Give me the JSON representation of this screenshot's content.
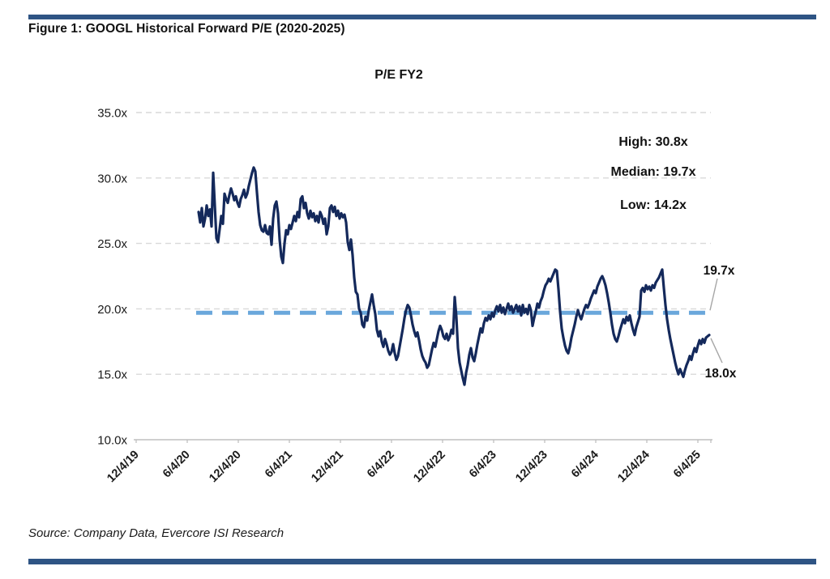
{
  "page": {
    "background": "#FFFFFF",
    "accent_bar_color": "#2E5484"
  },
  "header": {
    "title": "Figure 1: GOOGL Historical Forward P/E (2020-2025)"
  },
  "footer": {
    "source": "Source: Company Data, Evercore ISI Research"
  },
  "chart_data": {
    "type": "line",
    "title": "P/E FY2",
    "series_name": "GOOGL forward P/E (FY2)",
    "line_color": "#14295B",
    "grid_color": "#D9D9D9",
    "axis_color": "#BFBFBF",
    "callout_line_color": "#A6A6A6",
    "tick_text_color": "#1A1A1A",
    "grid_on": true,
    "legend_position": "none",
    "ylim": [
      10,
      35
    ],
    "y_tick_values": [
      35,
      30,
      25,
      20,
      15,
      10
    ],
    "y_tick_labels": [
      "35.0x",
      "30.0x",
      "25.0x",
      "20.0x",
      "15.0x",
      "10.0x"
    ],
    "x_tick_labels": [
      "12/4/19",
      "6/4/20",
      "12/4/20",
      "6/4/21",
      "12/4/21",
      "6/4/22",
      "12/4/22",
      "6/4/23",
      "12/4/23",
      "6/4/24",
      "12/4/24",
      "6/4/25"
    ],
    "x_tick_interval_years": 0.5,
    "x_axis_start_year": 2019.92,
    "x_axis_end_year": 2025.55,
    "stats": {
      "high": "High:  30.8x",
      "median": "Median: 19.7x",
      "low": "Low: 14.2x"
    },
    "median_line": {
      "value": 19.7,
      "start_year": 2020.507,
      "end_year": 2025.547,
      "color": "#6AA7DB",
      "callout_label": "19.7x"
    },
    "last_point_callout_label": "18.0x",
    "last_point_value": 18.0,
    "series_x_start_year": 2020.531,
    "series_x_step_years": 0.015873,
    "series_values": [
      27.4,
      26.6,
      27.7,
      26.3,
      26.9,
      27.9,
      27.1,
      27.6,
      26.3,
      30.4,
      27.9,
      25.4,
      25.1,
      26.1,
      27.1,
      26.5,
      28.8,
      28.4,
      28.1,
      28.7,
      29.2,
      28.8,
      28.3,
      28.6,
      28.1,
      27.8,
      28.4,
      28.7,
      29.1,
      28.5,
      28.8,
      29.4,
      29.9,
      30.4,
      30.8,
      30.5,
      28.9,
      27.4,
      26.4,
      26.0,
      25.9,
      26.4,
      25.8,
      25.7,
      26.3,
      24.9,
      26.9,
      27.9,
      28.2,
      27.3,
      25.3,
      24.0,
      23.5,
      25.0,
      26.0,
      25.7,
      26.4,
      26.1,
      26.6,
      27.1,
      26.7,
      27.4,
      27.0,
      28.4,
      28.6,
      27.7,
      28.1,
      27.3,
      26.9,
      27.5,
      27.0,
      27.3,
      26.7,
      27.1,
      26.6,
      27.4,
      27.1,
      26.5,
      26.9,
      25.7,
      26.3,
      27.7,
      27.9,
      27.4,
      27.8,
      27.1,
      27.5,
      26.9,
      27.3,
      27.0,
      27.2,
      26.6,
      25.1,
      24.5,
      25.3,
      24.1,
      22.4,
      21.3,
      21.1,
      20.0,
      19.7,
      18.8,
      18.6,
      19.4,
      19.1,
      19.9,
      20.5,
      21.1,
      20.3,
      19.6,
      18.4,
      17.9,
      18.3,
      17.5,
      17.1,
      17.7,
      17.3,
      16.8,
      16.5,
      16.7,
      17.3,
      16.6,
      16.1,
      16.4,
      17.1,
      17.8,
      18.5,
      19.3,
      19.9,
      20.3,
      20.1,
      19.5,
      18.8,
      18.3,
      17.9,
      18.2,
      17.6,
      16.9,
      16.4,
      16.1,
      15.9,
      15.5,
      15.7,
      16.3,
      16.9,
      17.4,
      17.1,
      17.7,
      18.3,
      18.7,
      18.4,
      17.9,
      17.7,
      18.1,
      17.6,
      17.9,
      18.4,
      18.1,
      20.9,
      19.4,
      17.0,
      15.9,
      15.3,
      14.7,
      14.2,
      15.1,
      15.7,
      16.5,
      17.0,
      16.3,
      16.0,
      16.6,
      17.3,
      17.9,
      18.5,
      18.2,
      18.9,
      19.3,
      19.1,
      19.5,
      19.2,
      19.7,
      19.4,
      19.9,
      20.2,
      19.8,
      20.3,
      19.7,
      20.1,
      19.6,
      20.0,
      20.4,
      19.9,
      20.2,
      19.7,
      20.0,
      20.3,
      19.8,
      20.2,
      19.5,
      20.3,
      19.7,
      20.0,
      19.6,
      20.3,
      19.9,
      18.7,
      19.3,
      19.8,
      20.4,
      20.1,
      20.6,
      20.9,
      21.4,
      21.8,
      22.0,
      22.3,
      22.1,
      22.4,
      22.7,
      23.0,
      22.9,
      21.5,
      19.8,
      18.5,
      17.8,
      17.2,
      16.8,
      16.6,
      17.1,
      17.8,
      18.3,
      18.8,
      19.4,
      19.9,
      19.5,
      19.2,
      19.6,
      20.0,
      20.3,
      20.1,
      20.4,
      20.8,
      21.1,
      21.4,
      21.2,
      21.7,
      22.0,
      22.3,
      22.5,
      22.2,
      21.8,
      21.2,
      20.5,
      19.7,
      18.8,
      18.1,
      17.7,
      17.5,
      17.9,
      18.4,
      18.8,
      19.2,
      18.9,
      19.4,
      19.1,
      19.5,
      18.9,
      18.4,
      18.0,
      18.6,
      19.0,
      19.4,
      21.4,
      21.6,
      21.3,
      21.8,
      21.5,
      21.7,
      21.4,
      21.8,
      21.6,
      22.0,
      22.2,
      22.4,
      22.7,
      23.0,
      21.6,
      20.3,
      19.2,
      18.4,
      17.7,
      17.1,
      16.5,
      15.9,
      15.4,
      15.0,
      15.4,
      15.1,
      14.8,
      15.3,
      15.7,
      16.0,
      16.4,
      16.1,
      16.6,
      17.0,
      16.7,
      17.2,
      17.6,
      17.3,
      17.7,
      17.4,
      17.8,
      17.9,
      18.0
    ]
  }
}
